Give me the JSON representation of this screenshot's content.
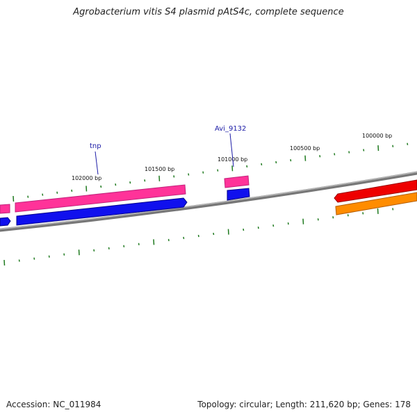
{
  "title": "Agrobacterium vitis S4 plasmid pAtS4c, complete sequence",
  "accession": "Accession: NC_011984",
  "summary": "Topology: circular; Length: 211,620 bp; Genes: 178",
  "colors": {
    "backbone": "#888888",
    "tick": "#1f7a1f",
    "gene_pink": "#ff3399",
    "gene_blue": "#1010ee",
    "gene_red": "#ee0000",
    "gene_orange": "#ff8c00",
    "label_line": "#1a1aa6"
  },
  "scale_labels": [
    {
      "text": "102000 bp"
    },
    {
      "text": "101500 bp"
    },
    {
      "text": "101000 bp"
    },
    {
      "text": "100500 bp"
    },
    {
      "text": "100000 bp"
    }
  ],
  "gene_labels": [
    {
      "text": "tnp"
    },
    {
      "text": "Avi_9132"
    }
  ]
}
